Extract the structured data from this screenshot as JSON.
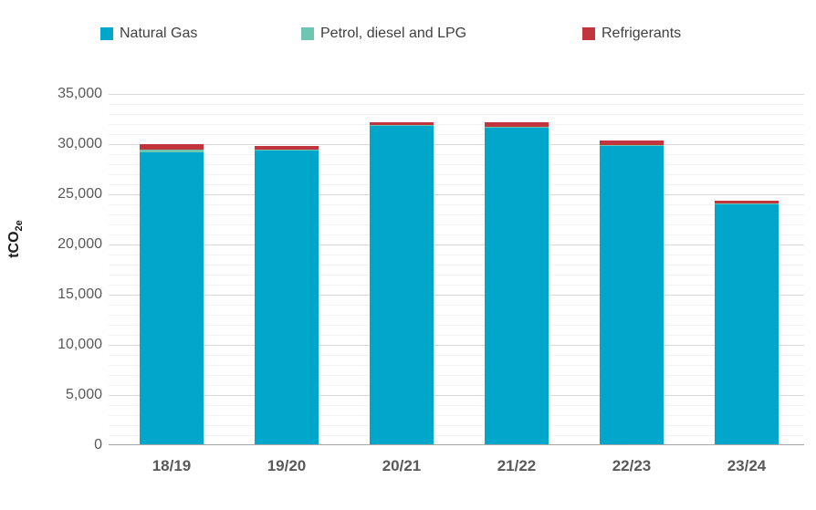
{
  "legend": {
    "items": [
      {
        "label": "Natural Gas",
        "color": "#00a7ca"
      },
      {
        "label": "Petrol, diesel and LPG",
        "color": "#6ec6b2"
      },
      {
        "label": "Refrigerants",
        "color": "#c3353e"
      }
    ]
  },
  "y_axis": {
    "title_main": "tCO",
    "title_sub": "2e",
    "ticks": [
      {
        "value": 35000,
        "label": "35,000"
      },
      {
        "value": 30000,
        "label": "30,000"
      },
      {
        "value": 25000,
        "label": "25,000"
      },
      {
        "value": 20000,
        "label": "20,000"
      },
      {
        "value": 15000,
        "label": "15,000"
      },
      {
        "value": 10000,
        "label": "10,000"
      },
      {
        "value": 5000,
        "label": "5,000"
      },
      {
        "value": 0,
        "label": "0"
      }
    ]
  },
  "chart_data": {
    "type": "bar",
    "stacked": true,
    "title": "",
    "xlabel": "",
    "ylabel": "tCO2e",
    "ylim": [
      0,
      35000
    ],
    "minor_step": 1000,
    "major_step": 5000,
    "grid": "minor-and-major-horizontal",
    "legend_position": "top",
    "categories": [
      "18/19",
      "19/20",
      "20/21",
      "21/22",
      "22/23",
      "23/24"
    ],
    "series": [
      {
        "name": "Natural Gas",
        "color": "#00a7ca",
        "values": [
          29100,
          29300,
          31700,
          31550,
          29750,
          23900
        ]
      },
      {
        "name": "Petrol, diesel and LPG",
        "color": "#6ec6b2",
        "values": [
          300,
          100,
          100,
          100,
          100,
          100
        ]
      },
      {
        "name": "Refrigerants",
        "color": "#c3353e",
        "values": [
          500,
          300,
          300,
          400,
          400,
          300
        ]
      }
    ],
    "totals_estimated": [
      29900,
      29700,
      32100,
      32050,
      30250,
      24300
    ]
  }
}
